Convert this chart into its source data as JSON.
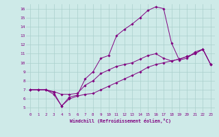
{
  "xlabel": "Windchill (Refroidissement éolien,°C)",
  "bg_color": "#ceeae8",
  "grid_color": "#aacfcc",
  "line_color": "#800080",
  "xlim": [
    -0.5,
    23.5
  ],
  "ylim": [
    4.5,
    16.5
  ],
  "xticks": [
    0,
    1,
    2,
    3,
    4,
    5,
    6,
    7,
    8,
    9,
    10,
    11,
    12,
    13,
    14,
    15,
    16,
    17,
    18,
    19,
    20,
    21,
    22,
    23
  ],
  "yticks": [
    5,
    6,
    7,
    8,
    9,
    10,
    11,
    12,
    13,
    14,
    15,
    16
  ],
  "line1_x": [
    0,
    1,
    2,
    3,
    4,
    5,
    6,
    7,
    8,
    9,
    10,
    11,
    12,
    13,
    14,
    15,
    16,
    17,
    18,
    19,
    20,
    21,
    22,
    23
  ],
  "line1_y": [
    7.0,
    7.0,
    7.0,
    6.7,
    5.2,
    6.2,
    6.4,
    8.2,
    9.0,
    10.5,
    10.8,
    13.0,
    13.7,
    14.3,
    15.0,
    15.8,
    16.2,
    16.0,
    12.2,
    10.3,
    10.5,
    11.2,
    11.5,
    9.8
  ],
  "line2_x": [
    0,
    1,
    2,
    3,
    4,
    5,
    6,
    7,
    8,
    9,
    10,
    11,
    12,
    13,
    14,
    15,
    16,
    17,
    18,
    19,
    20,
    21,
    22,
    23
  ],
  "line2_y": [
    7.0,
    7.0,
    7.0,
    6.5,
    5.2,
    6.0,
    6.3,
    6.5,
    6.6,
    7.0,
    7.4,
    7.8,
    8.2,
    8.6,
    9.0,
    9.5,
    9.8,
    10.0,
    10.2,
    10.4,
    10.7,
    11.0,
    11.5,
    9.8
  ],
  "line3_x": [
    0,
    1,
    2,
    3,
    4,
    5,
    6,
    7,
    8,
    9,
    10,
    11,
    12,
    13,
    14,
    15,
    16,
    17,
    18,
    19,
    20,
    21,
    22,
    23
  ],
  "line3_y": [
    7.0,
    7.0,
    7.0,
    6.8,
    6.5,
    6.5,
    6.6,
    7.5,
    8.0,
    8.8,
    9.2,
    9.6,
    9.8,
    10.0,
    10.4,
    10.8,
    11.0,
    10.5,
    10.2,
    10.4,
    10.7,
    11.0,
    11.5,
    9.8
  ]
}
